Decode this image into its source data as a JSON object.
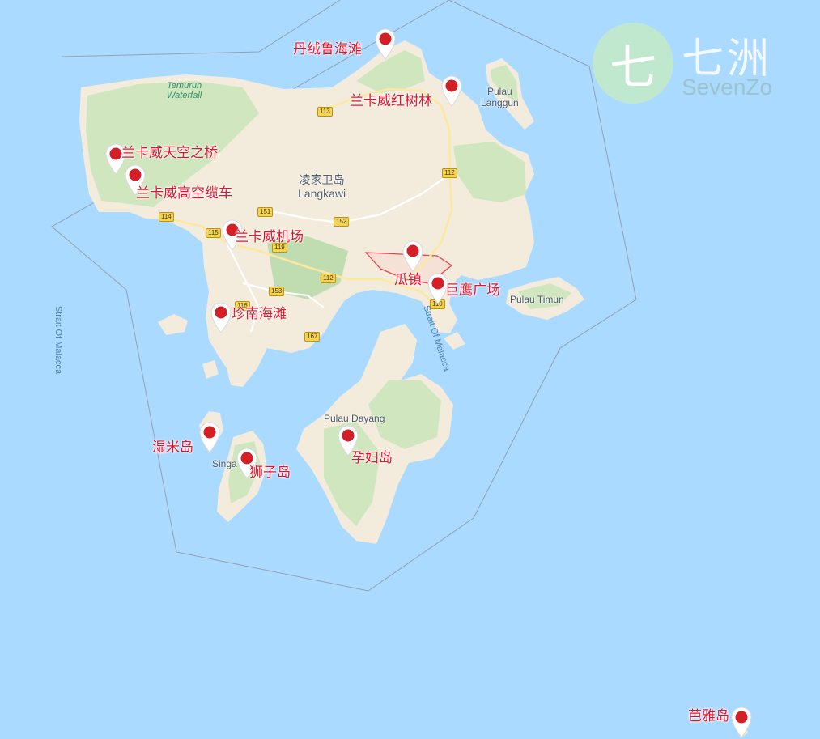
{
  "map": {
    "colors": {
      "water": "#aadaff",
      "land": "#f3ecdc",
      "forest": "#cfe6bf",
      "region_fill": "#ffc8cd",
      "region_stroke": "#e8434d",
      "marker_red": "#d31f26",
      "label_red": "#e5132a"
    },
    "places": {
      "main_island_cn": "凌家卫岛",
      "main_island_en": "Langkawi",
      "langgun_1": "Pulau",
      "langgun_2": "Langgun",
      "timun": "Pulau Timun",
      "dayang_1": "Pulau Dayang",
      "dayang_2": "",
      "singa_1": "",
      "singa_2": "Singa",
      "kuah_char": ""
    },
    "waterfall": {
      "line1": "Temurun",
      "line2": "Waterfall"
    },
    "water_labels": {
      "west": "Strait Of Malacca",
      "east": "Strait Of Malacca"
    },
    "road_shields": [
      "113",
      "112",
      "114",
      "115",
      "151",
      "152",
      "119",
      "112",
      "153",
      "116",
      "110",
      "167"
    ],
    "markers": [
      {
        "icon": "map-pin-icon",
        "label": "丹绒鲁海滩"
      },
      {
        "icon": "map-pin-icon",
        "label": "兰卡威红树林"
      },
      {
        "icon": "map-pin-icon",
        "label": "兰卡威天空之桥"
      },
      {
        "icon": "map-pin-icon",
        "label": "兰卡威高空缆车"
      },
      {
        "icon": "map-pin-icon",
        "label": "兰卡威机场"
      },
      {
        "icon": "map-pin-icon",
        "label": "瓜镇"
      },
      {
        "icon": "map-pin-icon",
        "label": "巨鹰广场"
      },
      {
        "icon": "map-pin-icon",
        "label": "珍南海滩"
      },
      {
        "icon": "map-pin-icon",
        "label": "湿米岛"
      },
      {
        "icon": "map-pin-icon",
        "label": "狮子岛"
      },
      {
        "icon": "map-pin-icon",
        "label": "孕妇岛"
      },
      {
        "icon": "map-pin-icon",
        "label": "芭雅岛"
      }
    ]
  },
  "logo": {
    "glyph": "七",
    "name_cn": "七洲",
    "name_en": "SevenZo"
  }
}
